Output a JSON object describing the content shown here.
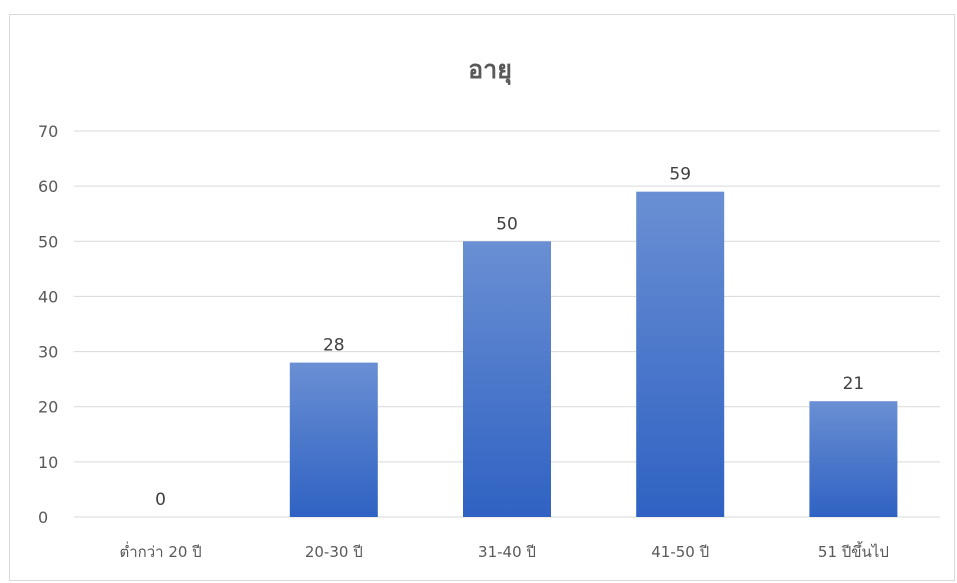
{
  "chart_data": {
    "type": "bar",
    "title": "อายุ",
    "xlabel": "",
    "ylabel": "",
    "categories": [
      "ต่ำกว่า 20 ปี",
      "20-30 ปี",
      "31-40 ปี",
      "41-50 ปี",
      "51 ปีขึ้นไป"
    ],
    "values": [
      0,
      28,
      50,
      59,
      21
    ],
    "ylim": [
      0,
      70
    ],
    "yticks": [
      "0",
      "10",
      "20",
      "30",
      "40",
      "50",
      "60",
      "70"
    ],
    "data_labels": true,
    "grid": true,
    "legend": "none",
    "colors": {
      "bar_top": "#6a8fd3",
      "bar_bottom": "#2f62c3",
      "gridline": "#d9d9d9",
      "axis_text": "#595959"
    }
  }
}
